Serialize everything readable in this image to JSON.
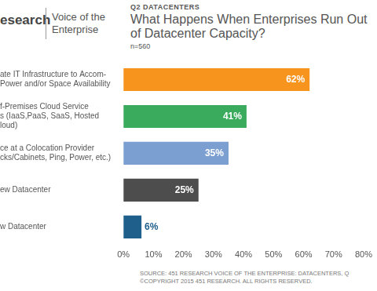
{
  "chart_data": {
    "type": "bar",
    "orientation": "horizontal",
    "title": "What Happens When Enterprises Run Out of Datacenter Capacity?",
    "subtitle": "n=560",
    "header": {
      "logo": "esearch",
      "product": "Voice of the Enterprise",
      "section": "Q2 DATACENTERS"
    },
    "source": [
      "SOURCE: 451 RESEARCH VOICE OF THE ENTERPRISE: DATACENTERS, Q",
      "©COPYRIGHT 2015 451 RESEARCH. ALL RIGHTS RESERVED."
    ],
    "categories": [
      [
        "ate IT Infrastructure to Accom-",
        "Power and/or Space Availability"
      ],
      [
        "f-Premises Cloud Service",
        "s (IaaS,PaaS, SaaS, Hosted",
        "loud)"
      ],
      [
        "ce at a Colocation Provider",
        "cks/Cabinets, Ping, Power, etc.)"
      ],
      "ew Datacenter",
      "w Datacenter"
    ],
    "values": [
      62,
      41,
      35,
      25,
      6
    ],
    "value_labels": [
      "62%",
      "41%",
      "35%",
      "25%",
      "6%"
    ],
    "colors": [
      "#f7941d",
      "#3aaa5c",
      "#7b9fd0",
      "#4d4d4d",
      "#1f5f8b"
    ],
    "data_labels": true,
    "xlim": [
      0,
      80
    ],
    "xticks": [
      {
        "value": 0,
        "label": "0%"
      },
      {
        "value": 10,
        "label": "10%"
      },
      {
        "value": 20,
        "label": "20%"
      },
      {
        "value": 30,
        "label": "30%"
      },
      {
        "value": 40,
        "label": "40%"
      },
      {
        "value": 50,
        "label": "50%"
      },
      {
        "value": 60,
        "label": "60%"
      },
      {
        "value": 70,
        "label": "70%"
      },
      {
        "value": 80,
        "label": "80%"
      }
    ],
    "grid": false
  }
}
